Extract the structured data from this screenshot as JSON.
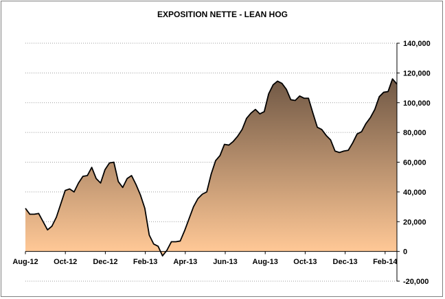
{
  "chart_data": {
    "type": "area",
    "title": "EXPOSITION NETTE - LEAN HOG",
    "xlabel": "",
    "ylabel": "",
    "ylim": [
      -20000,
      140000
    ],
    "y_ticks": [
      -20000,
      0,
      20000,
      40000,
      60000,
      80000,
      100000,
      120000,
      140000
    ],
    "y_tick_labels": [
      "-20,000",
      "0",
      "20,000",
      "40,000",
      "60,000",
      "80,000",
      "100,000",
      "120,000",
      "140,000"
    ],
    "x_tick_labels": [
      "Aug-12",
      "Oct-12",
      "Dec-12",
      "Feb-13",
      "Apr-13",
      "Jun-13",
      "Aug-13",
      "Oct-13",
      "Dec-13",
      "Feb-14"
    ],
    "y_axis_side": "right",
    "grid": "horizontal dotted",
    "legend": "none",
    "colors": {
      "fill_top": "#6b5442",
      "fill_bottom": "#ffc896",
      "line": "#000000",
      "grid": "#9a9a9a"
    },
    "series": [
      {
        "values": [
          29000,
          25000,
          25000,
          25500,
          20000,
          14500,
          17000,
          23000,
          32000,
          41000,
          42000,
          40000,
          46000,
          50500,
          51000,
          56500,
          49000,
          46000,
          55000,
          59500,
          60000,
          47000,
          43000,
          49000,
          51000,
          45000,
          38000,
          29000,
          11000,
          5000,
          3500,
          -3000,
          800,
          6500,
          6500,
          7000,
          14000,
          22000,
          30000,
          35500,
          38500,
          40000,
          52000,
          61000,
          64500,
          72000,
          71500,
          74000,
          77500,
          82000,
          89500,
          93000,
          95500,
          92500,
          94000,
          106000,
          112000,
          114500,
          113000,
          109000,
          102000,
          101500,
          104500,
          103000,
          103000,
          93000,
          83500,
          82000,
          78000,
          75000,
          67500,
          66500,
          67500,
          68000,
          73000,
          79000,
          80500,
          86000,
          90000,
          95500,
          104000,
          107000,
          107500,
          116000,
          112500
        ]
      }
    ]
  }
}
